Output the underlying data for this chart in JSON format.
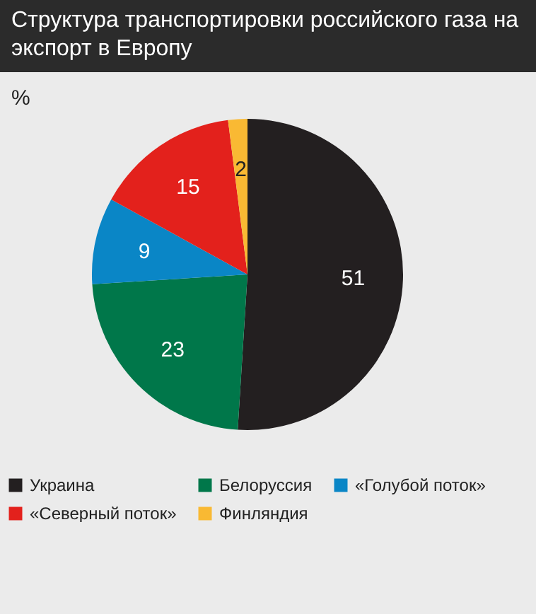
{
  "chart_data": {
    "type": "pie",
    "title": "Структура транспортировки российского газа на экспорт в Европу",
    "subtitle": "%",
    "categories": [
      "Украина",
      "Белоруссия",
      "«Голубой поток»",
      "«Северный поток»",
      "Финляндия"
    ],
    "values": [
      51,
      23,
      9,
      15,
      2
    ],
    "colors": [
      "#231f20",
      "#00774a",
      "#0a86c6",
      "#e3211c",
      "#f9b933"
    ],
    "data_labels": true,
    "legend": "bottom"
  }
}
